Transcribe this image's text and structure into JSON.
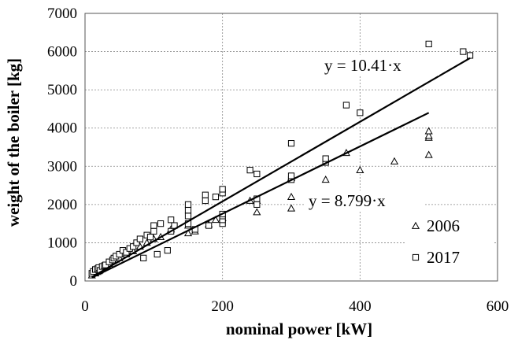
{
  "chart_data": {
    "type": "scatter",
    "xlabel": "nominal power [kW]",
    "ylabel": "weight of the boiler [kg]",
    "xlim": [
      0,
      600
    ],
    "ylim": [
      0,
      7000
    ],
    "xticks": [
      0,
      200,
      400,
      600
    ],
    "yticks": [
      0,
      1000,
      2000,
      3000,
      4000,
      5000,
      6000,
      7000
    ],
    "grid": true,
    "legend_position": "bottom-right",
    "series": [
      {
        "name": "2006",
        "marker": "triangle",
        "points": [
          [
            10,
            150
          ],
          [
            15,
            200
          ],
          [
            18,
            240
          ],
          [
            20,
            260
          ],
          [
            22,
            300
          ],
          [
            25,
            320
          ],
          [
            28,
            350
          ],
          [
            30,
            380
          ],
          [
            32,
            420
          ],
          [
            35,
            450
          ],
          [
            40,
            520
          ],
          [
            45,
            560
          ],
          [
            50,
            600
          ],
          [
            60,
            700
          ],
          [
            70,
            780
          ],
          [
            80,
            900
          ],
          [
            90,
            1000
          ],
          [
            100,
            1100
          ],
          [
            110,
            1150
          ],
          [
            125,
            1350
          ],
          [
            150,
            1250
          ],
          [
            150,
            1450
          ],
          [
            160,
            1300
          ],
          [
            180,
            1480
          ],
          [
            190,
            1600
          ],
          [
            200,
            1650
          ],
          [
            240,
            2100
          ],
          [
            250,
            1800
          ],
          [
            250,
            2100
          ],
          [
            300,
            1900
          ],
          [
            300,
            2200
          ],
          [
            300,
            2700
          ],
          [
            350,
            2650
          ],
          [
            380,
            3350
          ],
          [
            400,
            2900
          ],
          [
            450,
            3130
          ],
          [
            500,
            3300
          ],
          [
            500,
            3750
          ],
          [
            500,
            3800
          ],
          [
            500,
            3920
          ]
        ]
      },
      {
        "name": "2017",
        "marker": "square",
        "points": [
          [
            10,
            200
          ],
          [
            12,
            250
          ],
          [
            15,
            300
          ],
          [
            18,
            320
          ],
          [
            20,
            350
          ],
          [
            22,
            280
          ],
          [
            25,
            380
          ],
          [
            28,
            400
          ],
          [
            30,
            420
          ],
          [
            35,
            500
          ],
          [
            40,
            550
          ],
          [
            42,
            600
          ],
          [
            45,
            650
          ],
          [
            50,
            700
          ],
          [
            55,
            800
          ],
          [
            60,
            750
          ],
          [
            65,
            850
          ],
          [
            70,
            900
          ],
          [
            75,
            1000
          ],
          [
            80,
            1100
          ],
          [
            85,
            600
          ],
          [
            90,
            1200
          ],
          [
            95,
            1150
          ],
          [
            100,
            1300
          ],
          [
            100,
            1450
          ],
          [
            105,
            700
          ],
          [
            110,
            1500
          ],
          [
            120,
            800
          ],
          [
            125,
            1300
          ],
          [
            125,
            1600
          ],
          [
            130,
            1450
          ],
          [
            150,
            1500
          ],
          [
            150,
            1700
          ],
          [
            150,
            1850
          ],
          [
            150,
            2000
          ],
          [
            160,
            1350
          ],
          [
            175,
            2100
          ],
          [
            175,
            2250
          ],
          [
            180,
            1450
          ],
          [
            190,
            2200
          ],
          [
            200,
            1500
          ],
          [
            200,
            1600
          ],
          [
            200,
            1700
          ],
          [
            200,
            1750
          ],
          [
            200,
            2300
          ],
          [
            200,
            2400
          ],
          [
            240,
            2900
          ],
          [
            250,
            2000
          ],
          [
            250,
            2150
          ],
          [
            250,
            2800
          ],
          [
            300,
            2650
          ],
          [
            300,
            2750
          ],
          [
            300,
            3600
          ],
          [
            350,
            3100
          ],
          [
            350,
            3200
          ],
          [
            380,
            4600
          ],
          [
            400,
            4400
          ],
          [
            500,
            6200
          ],
          [
            550,
            6000
          ],
          [
            560,
            5900
          ]
        ]
      }
    ],
    "trendlines": [
      {
        "slope": 10.41,
        "x_range": [
          10,
          560
        ],
        "label": "y = 10.41·x"
      },
      {
        "slope": 8.799,
        "x_range": [
          10,
          500
        ],
        "label": "y = 8.799·x"
      }
    ]
  }
}
